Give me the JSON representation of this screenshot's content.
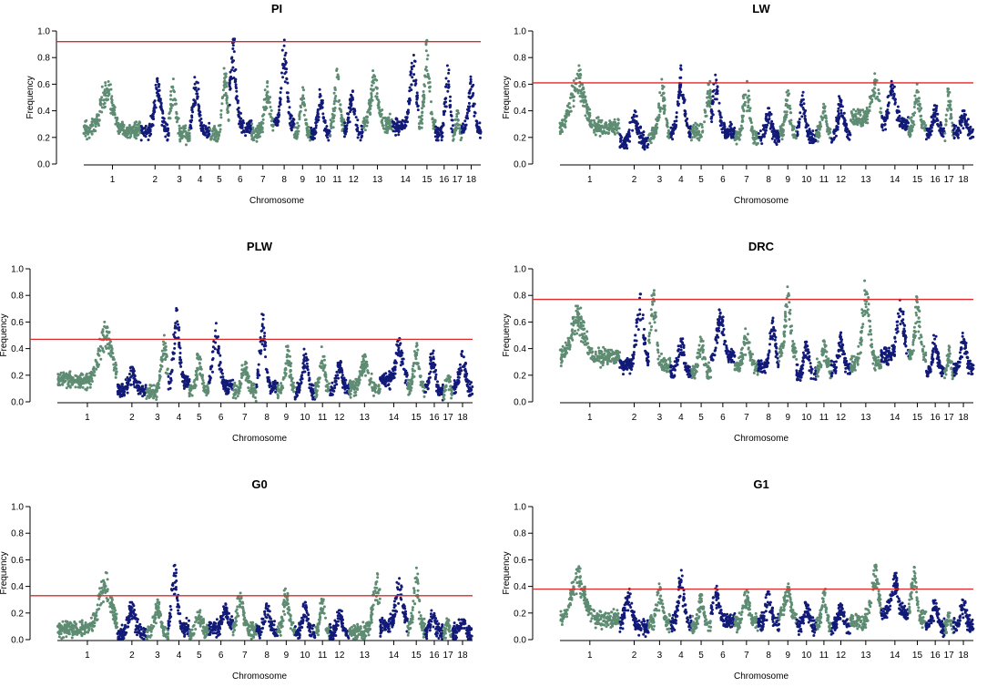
{
  "figure": {
    "colors": {
      "green": "#5e8c72",
      "navy": "#121a78",
      "threshold": "#dd2a2a"
    }
  },
  "chart_data": [
    {
      "type": "scatter",
      "title": "PI",
      "xlabel": "Chromosome",
      "ylabel": "Frequency",
      "ylim": [
        0,
        1
      ],
      "yticks": [
        "0.0",
        "0.2",
        "0.4",
        "0.6",
        "0.8",
        "1.0"
      ],
      "threshold": 0.92,
      "chromosomes": [
        {
          "label": "1",
          "start": 0,
          "end": 120,
          "base": 0.26,
          "peak": 0.62,
          "peak_pos": 0.4
        },
        {
          "label": "2",
          "start": 120,
          "end": 178,
          "base": 0.24,
          "peak": 0.66,
          "peak_pos": 0.6
        },
        {
          "label": "3",
          "start": 178,
          "end": 222,
          "base": 0.22,
          "peak": 0.64,
          "peak_pos": 0.2
        },
        {
          "label": "4",
          "start": 222,
          "end": 264,
          "base": 0.24,
          "peak": 0.66,
          "peak_pos": 0.3
        },
        {
          "label": "5",
          "start": 264,
          "end": 303,
          "base": 0.22,
          "peak": 0.75,
          "peak_pos": 0.8
        },
        {
          "label": "6",
          "start": 303,
          "end": 351,
          "base": 0.28,
          "peak": 0.96,
          "peak_pos": 0.2
        },
        {
          "label": "7",
          "start": 351,
          "end": 398,
          "base": 0.24,
          "peak": 0.62,
          "peak_pos": 0.7
        },
        {
          "label": "8",
          "start": 398,
          "end": 440,
          "base": 0.3,
          "peak": 0.99,
          "peak_pos": 0.5
        },
        {
          "label": "9",
          "start": 440,
          "end": 475,
          "base": 0.22,
          "peak": 0.58,
          "peak_pos": 0.5
        },
        {
          "label": "10",
          "start": 475,
          "end": 515,
          "base": 0.22,
          "peak": 0.56,
          "peak_pos": 0.5
        },
        {
          "label": "11",
          "start": 515,
          "end": 545,
          "base": 0.28,
          "peak": 0.75,
          "peak_pos": 0.5
        },
        {
          "label": "12",
          "start": 545,
          "end": 583,
          "base": 0.24,
          "peak": 0.55,
          "peak_pos": 0.4
        },
        {
          "label": "13",
          "start": 583,
          "end": 645,
          "base": 0.3,
          "peak": 0.75,
          "peak_pos": 0.4
        },
        {
          "label": "14",
          "start": 645,
          "end": 700,
          "base": 0.28,
          "peak": 0.85,
          "peak_pos": 0.8
        },
        {
          "label": "15",
          "start": 700,
          "end": 735,
          "base": 0.3,
          "peak": 0.93,
          "peak_pos": 0.5
        },
        {
          "label": "16",
          "start": 735,
          "end": 772,
          "base": 0.22,
          "peak": 0.74,
          "peak_pos": 0.7
        },
        {
          "label": "17",
          "start": 772,
          "end": 790,
          "base": 0.2,
          "peak": 0.4,
          "peak_pos": 0.5
        },
        {
          "label": "18",
          "start": 790,
          "end": 830,
          "base": 0.26,
          "peak": 0.66,
          "peak_pos": 0.5
        }
      ]
    },
    {
      "type": "scatter",
      "title": "LW",
      "xlabel": "Chromosome",
      "ylabel": "Frequency",
      "ylim": [
        0,
        1
      ],
      "yticks": [
        "0.0",
        "0.2",
        "0.4",
        "0.6",
        "0.8",
        "1.0"
      ],
      "threshold": 0.61,
      "chromosomes": [
        {
          "label": "1",
          "start": 0,
          "end": 120,
          "base": 0.28,
          "peak": 0.74,
          "peak_pos": 0.3
        },
        {
          "label": "2",
          "start": 120,
          "end": 178,
          "base": 0.16,
          "peak": 0.4,
          "peak_pos": 0.5
        },
        {
          "label": "3",
          "start": 178,
          "end": 222,
          "base": 0.22,
          "peak": 0.65,
          "peak_pos": 0.6
        },
        {
          "label": "4",
          "start": 222,
          "end": 264,
          "base": 0.24,
          "peak": 0.74,
          "peak_pos": 0.5
        },
        {
          "label": "5",
          "start": 264,
          "end": 303,
          "base": 0.24,
          "peak": 0.65,
          "peak_pos": 0.9
        },
        {
          "label": "6",
          "start": 303,
          "end": 351,
          "base": 0.24,
          "peak": 0.67,
          "peak_pos": 0.2
        },
        {
          "label": "7",
          "start": 351,
          "end": 398,
          "base": 0.2,
          "peak": 0.63,
          "peak_pos": 0.5
        },
        {
          "label": "8",
          "start": 398,
          "end": 440,
          "base": 0.2,
          "peak": 0.42,
          "peak_pos": 0.5
        },
        {
          "label": "9",
          "start": 440,
          "end": 475,
          "base": 0.22,
          "peak": 0.57,
          "peak_pos": 0.5
        },
        {
          "label": "10",
          "start": 475,
          "end": 515,
          "base": 0.2,
          "peak": 0.54,
          "peak_pos": 0.3
        },
        {
          "label": "11",
          "start": 515,
          "end": 545,
          "base": 0.22,
          "peak": 0.45,
          "peak_pos": 0.5
        },
        {
          "label": "12",
          "start": 545,
          "end": 583,
          "base": 0.22,
          "peak": 0.52,
          "peak_pos": 0.5
        },
        {
          "label": "13",
          "start": 583,
          "end": 645,
          "base": 0.34,
          "peak": 0.68,
          "peak_pos": 0.8
        },
        {
          "label": "14",
          "start": 645,
          "end": 700,
          "base": 0.3,
          "peak": 0.65,
          "peak_pos": 0.4
        },
        {
          "label": "15",
          "start": 700,
          "end": 735,
          "base": 0.26,
          "peak": 0.6,
          "peak_pos": 0.5
        },
        {
          "label": "16",
          "start": 735,
          "end": 772,
          "base": 0.24,
          "peak": 0.44,
          "peak_pos": 0.5
        },
        {
          "label": "17",
          "start": 772,
          "end": 790,
          "base": 0.22,
          "peak": 0.62,
          "peak_pos": 0.5
        },
        {
          "label": "18",
          "start": 790,
          "end": 830,
          "base": 0.22,
          "peak": 0.4,
          "peak_pos": 0.5
        }
      ]
    },
    {
      "type": "scatter",
      "title": "PLW",
      "xlabel": "Chromosome",
      "ylabel": "Frequency",
      "ylim": [
        0,
        1
      ],
      "yticks": [
        "0.0",
        "0.2",
        "0.4",
        "0.6",
        "0.8",
        "1.0"
      ],
      "threshold": 0.47,
      "chromosomes": [
        {
          "label": "1",
          "start": 0,
          "end": 120,
          "base": 0.16,
          "peak": 0.6,
          "peak_pos": 0.8
        },
        {
          "label": "2",
          "start": 120,
          "end": 178,
          "base": 0.08,
          "peak": 0.26,
          "peak_pos": 0.5
        },
        {
          "label": "3",
          "start": 178,
          "end": 222,
          "base": 0.08,
          "peak": 0.5,
          "peak_pos": 0.8
        },
        {
          "label": "4",
          "start": 222,
          "end": 264,
          "base": 0.14,
          "peak": 0.72,
          "peak_pos": 0.4
        },
        {
          "label": "5",
          "start": 264,
          "end": 303,
          "base": 0.08,
          "peak": 0.36,
          "peak_pos": 0.5
        },
        {
          "label": "6",
          "start": 303,
          "end": 351,
          "base": 0.12,
          "peak": 0.61,
          "peak_pos": 0.3
        },
        {
          "label": "7",
          "start": 351,
          "end": 398,
          "base": 0.08,
          "peak": 0.3,
          "peak_pos": 0.5
        },
        {
          "label": "8",
          "start": 398,
          "end": 440,
          "base": 0.1,
          "peak": 0.68,
          "peak_pos": 0.3
        },
        {
          "label": "9",
          "start": 440,
          "end": 475,
          "base": 0.08,
          "peak": 0.42,
          "peak_pos": 0.6
        },
        {
          "label": "10",
          "start": 475,
          "end": 515,
          "base": 0.07,
          "peak": 0.4,
          "peak_pos": 0.5
        },
        {
          "label": "11",
          "start": 515,
          "end": 545,
          "base": 0.08,
          "peak": 0.42,
          "peak_pos": 0.5
        },
        {
          "label": "12",
          "start": 545,
          "end": 583,
          "base": 0.08,
          "peak": 0.36,
          "peak_pos": 0.5
        },
        {
          "label": "13",
          "start": 583,
          "end": 645,
          "base": 0.1,
          "peak": 0.36,
          "peak_pos": 0.5
        },
        {
          "label": "14",
          "start": 645,
          "end": 700,
          "base": 0.16,
          "peak": 0.48,
          "peak_pos": 0.7
        },
        {
          "label": "15",
          "start": 700,
          "end": 735,
          "base": 0.1,
          "peak": 0.44,
          "peak_pos": 0.5
        },
        {
          "label": "16",
          "start": 735,
          "end": 772,
          "base": 0.08,
          "peak": 0.4,
          "peak_pos": 0.4
        },
        {
          "label": "17",
          "start": 772,
          "end": 790,
          "base": 0.06,
          "peak": 0.24,
          "peak_pos": 0.5
        },
        {
          "label": "18",
          "start": 790,
          "end": 830,
          "base": 0.1,
          "peak": 0.38,
          "peak_pos": 0.5
        }
      ]
    },
    {
      "type": "scatter",
      "title": "DRC",
      "xlabel": "Chromosome",
      "ylabel": "Frequency",
      "ylim": [
        0,
        1
      ],
      "yticks": [
        "0.0",
        "0.2",
        "0.4",
        "0.6",
        "0.8",
        "1.0"
      ],
      "threshold": 0.77,
      "chromosomes": [
        {
          "label": "1",
          "start": 0,
          "end": 120,
          "base": 0.34,
          "peak": 0.72,
          "peak_pos": 0.3
        },
        {
          "label": "2",
          "start": 120,
          "end": 178,
          "base": 0.28,
          "peak": 0.81,
          "peak_pos": 0.7
        },
        {
          "label": "3",
          "start": 178,
          "end": 222,
          "base": 0.28,
          "peak": 0.88,
          "peak_pos": 0.2
        },
        {
          "label": "4",
          "start": 222,
          "end": 264,
          "base": 0.22,
          "peak": 0.5,
          "peak_pos": 0.5
        },
        {
          "label": "5",
          "start": 264,
          "end": 303,
          "base": 0.22,
          "peak": 0.5,
          "peak_pos": 0.5
        },
        {
          "label": "6",
          "start": 303,
          "end": 351,
          "base": 0.34,
          "peak": 0.74,
          "peak_pos": 0.4
        },
        {
          "label": "7",
          "start": 351,
          "end": 398,
          "base": 0.26,
          "peak": 0.55,
          "peak_pos": 0.5
        },
        {
          "label": "8",
          "start": 398,
          "end": 440,
          "base": 0.26,
          "peak": 0.63,
          "peak_pos": 0.7
        },
        {
          "label": "9",
          "start": 440,
          "end": 475,
          "base": 0.36,
          "peak": 0.9,
          "peak_pos": 0.5
        },
        {
          "label": "10",
          "start": 475,
          "end": 515,
          "base": 0.2,
          "peak": 0.45,
          "peak_pos": 0.5
        },
        {
          "label": "11",
          "start": 515,
          "end": 545,
          "base": 0.24,
          "peak": 0.46,
          "peak_pos": 0.5
        },
        {
          "label": "12",
          "start": 545,
          "end": 583,
          "base": 0.24,
          "peak": 0.52,
          "peak_pos": 0.5
        },
        {
          "label": "13",
          "start": 583,
          "end": 645,
          "base": 0.28,
          "peak": 0.91,
          "peak_pos": 0.5
        },
        {
          "label": "14",
          "start": 645,
          "end": 700,
          "base": 0.34,
          "peak": 0.8,
          "peak_pos": 0.7
        },
        {
          "label": "15",
          "start": 700,
          "end": 735,
          "base": 0.34,
          "peak": 0.81,
          "peak_pos": 0.5
        },
        {
          "label": "16",
          "start": 735,
          "end": 772,
          "base": 0.22,
          "peak": 0.5,
          "peak_pos": 0.5
        },
        {
          "label": "17",
          "start": 772,
          "end": 790,
          "base": 0.2,
          "peak": 0.42,
          "peak_pos": 0.5
        },
        {
          "label": "18",
          "start": 790,
          "end": 830,
          "base": 0.24,
          "peak": 0.52,
          "peak_pos": 0.5
        }
      ]
    },
    {
      "type": "scatter",
      "title": "G0",
      "xlabel": "Chromosome",
      "ylabel": "Frequency",
      "ylim": [
        0,
        1
      ],
      "yticks": [
        "0.0",
        "0.2",
        "0.4",
        "0.6",
        "0.8",
        "1.0"
      ],
      "threshold": 0.33,
      "chromosomes": [
        {
          "label": "1",
          "start": 0,
          "end": 120,
          "base": 0.08,
          "peak": 0.51,
          "peak_pos": 0.8
        },
        {
          "label": "2",
          "start": 120,
          "end": 178,
          "base": 0.05,
          "peak": 0.28,
          "peak_pos": 0.5
        },
        {
          "label": "3",
          "start": 178,
          "end": 222,
          "base": 0.05,
          "peak": 0.3,
          "peak_pos": 0.5
        },
        {
          "label": "4",
          "start": 222,
          "end": 264,
          "base": 0.08,
          "peak": 0.56,
          "peak_pos": 0.3
        },
        {
          "label": "5",
          "start": 264,
          "end": 303,
          "base": 0.05,
          "peak": 0.22,
          "peak_pos": 0.5
        },
        {
          "label": "6",
          "start": 303,
          "end": 351,
          "base": 0.08,
          "peak": 0.27,
          "peak_pos": 0.7
        },
        {
          "label": "7",
          "start": 351,
          "end": 398,
          "base": 0.08,
          "peak": 0.35,
          "peak_pos": 0.3
        },
        {
          "label": "8",
          "start": 398,
          "end": 440,
          "base": 0.06,
          "peak": 0.27,
          "peak_pos": 0.5
        },
        {
          "label": "9",
          "start": 440,
          "end": 475,
          "base": 0.08,
          "peak": 0.41,
          "peak_pos": 0.5
        },
        {
          "label": "10",
          "start": 475,
          "end": 515,
          "base": 0.05,
          "peak": 0.28,
          "peak_pos": 0.5
        },
        {
          "label": "11",
          "start": 515,
          "end": 545,
          "base": 0.05,
          "peak": 0.32,
          "peak_pos": 0.5
        },
        {
          "label": "12",
          "start": 545,
          "end": 583,
          "base": 0.05,
          "peak": 0.22,
          "peak_pos": 0.5
        },
        {
          "label": "13",
          "start": 583,
          "end": 645,
          "base": 0.06,
          "peak": 0.5,
          "peak_pos": 0.9
        },
        {
          "label": "14",
          "start": 645,
          "end": 700,
          "base": 0.1,
          "peak": 0.46,
          "peak_pos": 0.7
        },
        {
          "label": "15",
          "start": 700,
          "end": 735,
          "base": 0.08,
          "peak": 0.55,
          "peak_pos": 0.5
        },
        {
          "label": "16",
          "start": 735,
          "end": 772,
          "base": 0.05,
          "peak": 0.22,
          "peak_pos": 0.4
        },
        {
          "label": "17",
          "start": 772,
          "end": 790,
          "base": 0.04,
          "peak": 0.16,
          "peak_pos": 0.5
        },
        {
          "label": "18",
          "start": 790,
          "end": 830,
          "base": 0.05,
          "peak": 0.15,
          "peak_pos": 0.5
        }
      ]
    },
    {
      "type": "scatter",
      "title": "G1",
      "xlabel": "Chromosome",
      "ylabel": "Frequency",
      "ylim": [
        0,
        1
      ],
      "yticks": [
        "0.0",
        "0.2",
        "0.4",
        "0.6",
        "0.8",
        "1.0"
      ],
      "threshold": 0.38,
      "chromosomes": [
        {
          "label": "1",
          "start": 0,
          "end": 120,
          "base": 0.16,
          "peak": 0.55,
          "peak_pos": 0.3
        },
        {
          "label": "2",
          "start": 120,
          "end": 178,
          "base": 0.1,
          "peak": 0.38,
          "peak_pos": 0.3
        },
        {
          "label": "3",
          "start": 178,
          "end": 222,
          "base": 0.12,
          "peak": 0.42,
          "peak_pos": 0.5
        },
        {
          "label": "4",
          "start": 222,
          "end": 264,
          "base": 0.12,
          "peak": 0.53,
          "peak_pos": 0.5
        },
        {
          "label": "5",
          "start": 264,
          "end": 303,
          "base": 0.1,
          "peak": 0.34,
          "peak_pos": 0.5
        },
        {
          "label": "6",
          "start": 303,
          "end": 351,
          "base": 0.14,
          "peak": 0.41,
          "peak_pos": 0.2
        },
        {
          "label": "7",
          "start": 351,
          "end": 398,
          "base": 0.12,
          "peak": 0.37,
          "peak_pos": 0.5
        },
        {
          "label": "8",
          "start": 398,
          "end": 440,
          "base": 0.12,
          "peak": 0.36,
          "peak_pos": 0.5
        },
        {
          "label": "9",
          "start": 440,
          "end": 475,
          "base": 0.18,
          "peak": 0.42,
          "peak_pos": 0.5
        },
        {
          "label": "10",
          "start": 475,
          "end": 515,
          "base": 0.1,
          "peak": 0.28,
          "peak_pos": 0.5
        },
        {
          "label": "11",
          "start": 515,
          "end": 545,
          "base": 0.1,
          "peak": 0.38,
          "peak_pos": 0.5
        },
        {
          "label": "12",
          "start": 545,
          "end": 583,
          "base": 0.1,
          "peak": 0.27,
          "peak_pos": 0.5
        },
        {
          "label": "13",
          "start": 583,
          "end": 645,
          "base": 0.14,
          "peak": 0.58,
          "peak_pos": 0.8
        },
        {
          "label": "14",
          "start": 645,
          "end": 700,
          "base": 0.2,
          "peak": 0.5,
          "peak_pos": 0.5
        },
        {
          "label": "15",
          "start": 700,
          "end": 735,
          "base": 0.16,
          "peak": 0.58,
          "peak_pos": 0.3
        },
        {
          "label": "16",
          "start": 735,
          "end": 772,
          "base": 0.1,
          "peak": 0.3,
          "peak_pos": 0.5
        },
        {
          "label": "17",
          "start": 772,
          "end": 790,
          "base": 0.08,
          "peak": 0.2,
          "peak_pos": 0.5
        },
        {
          "label": "18",
          "start": 790,
          "end": 830,
          "base": 0.1,
          "peak": 0.3,
          "peak_pos": 0.5
        }
      ]
    }
  ]
}
